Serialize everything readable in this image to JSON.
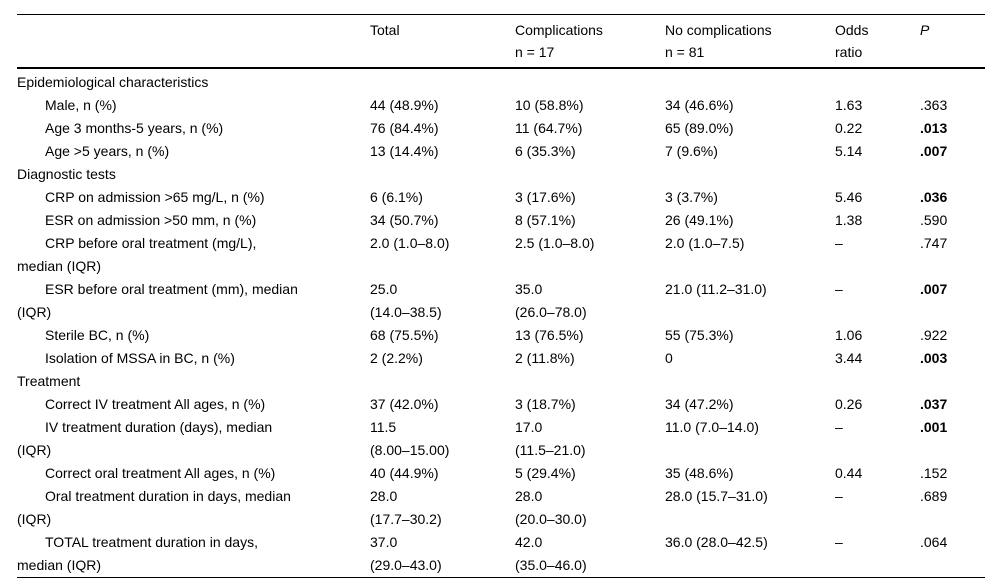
{
  "table": {
    "header": {
      "col_label": "",
      "columns": [
        {
          "text": "Total"
        },
        {
          "text": "Complications\nn = 17"
        },
        {
          "text": "No complications\nn = 81"
        },
        {
          "text": "Odds\nratio"
        },
        {
          "text": "P",
          "italic": true
        }
      ]
    },
    "rows": [
      {
        "kind": "section",
        "label": "Epidemiological characteristics"
      },
      {
        "kind": "item",
        "label": "Male, n (%)",
        "cells": [
          "44 (48.9%)",
          "10 (58.8%)",
          "34 (46.6%)",
          "1.63",
          ".363"
        ],
        "p_bold": false
      },
      {
        "kind": "item",
        "label": "Age 3 months-5 years, n (%)",
        "cells": [
          "76 (84.4%)",
          "11 (64.7%)",
          "65 (89.0%)",
          "0.22",
          ".013"
        ],
        "p_bold": true
      },
      {
        "kind": "item",
        "label": "Age >5 years, n (%)",
        "cells": [
          "13 (14.4%)",
          "6 (35.3%)",
          "7 (9.6%)",
          "5.14",
          ".007"
        ],
        "p_bold": true
      },
      {
        "kind": "section",
        "label": "Diagnostic tests"
      },
      {
        "kind": "item",
        "label": "CRP on admission >65 mg/L, n (%)",
        "cells": [
          "6 (6.1%)",
          "3 (17.6%)",
          "3 (3.7%)",
          "5.46",
          ".036"
        ],
        "p_bold": true
      },
      {
        "kind": "item",
        "label": "ESR on admission >50 mm, n (%)",
        "cells": [
          "34 (50.7%)",
          "8 (57.1%)",
          "26 (49.1%)",
          "1.38",
          ".590"
        ],
        "p_bold": false
      },
      {
        "kind": "item",
        "label": "CRP before oral treatment (mg/L),\nmedian (IQR)",
        "cells": [
          "2.0 (1.0–8.0)",
          "2.5 (1.0–8.0)",
          "2.0 (1.0–7.5)",
          "–",
          ".747"
        ],
        "p_bold": false
      },
      {
        "kind": "item",
        "label": "ESR before oral treatment (mm), median\n(IQR)",
        "cells": [
          "25.0\n(14.0–38.5)",
          "35.0\n(26.0–78.0)",
          "21.0 (11.2–31.0)",
          "–",
          ".007"
        ],
        "p_bold": true
      },
      {
        "kind": "item",
        "label": "Sterile BC, n (%)",
        "cells": [
          "68 (75.5%)",
          "13 (76.5%)",
          "55 (75.3%)",
          "1.06",
          ".922"
        ],
        "p_bold": false
      },
      {
        "kind": "item",
        "label": "Isolation of MSSA in BC, n (%)",
        "cells": [
          "2 (2.2%)",
          "2 (11.8%)",
          "0",
          "3.44",
          ".003"
        ],
        "p_bold": true
      },
      {
        "kind": "section",
        "label": "Treatment"
      },
      {
        "kind": "item",
        "label": "Correct IV treatment All ages, n (%)",
        "cells": [
          "37 (42.0%)",
          "3 (18.7%)",
          "34 (47.2%)",
          "0.26",
          ".037"
        ],
        "p_bold": true
      },
      {
        "kind": "item",
        "label": "IV treatment duration (days), median\n(IQR)",
        "cells": [
          "11.5\n(8.00–15.00)",
          "17.0\n(11.5–21.0)",
          "11.0 (7.0–14.0)",
          "–",
          ".001"
        ],
        "p_bold": true
      },
      {
        "kind": "item",
        "label": "Correct oral treatment All ages, n (%)",
        "cells": [
          "40 (44.9%)",
          "5 (29.4%)",
          "35 (48.6%)",
          "0.44",
          ".152"
        ],
        "p_bold": false
      },
      {
        "kind": "item",
        "label": "Oral treatment duration in days, median\n(IQR)",
        "cells": [
          "28.0\n(17.7–30.2)",
          "28.0\n(20.0–30.0)",
          "28.0 (15.7–31.0)",
          "–",
          ".689"
        ],
        "p_bold": false
      },
      {
        "kind": "item",
        "label": "TOTAL treatment duration in days,\nmedian (IQR)",
        "cells": [
          "37.0\n(29.0–43.0)",
          "42.0\n(35.0–46.0)",
          "36.0 (28.0–42.5)",
          "–",
          ".064"
        ],
        "p_bold": false
      }
    ]
  }
}
